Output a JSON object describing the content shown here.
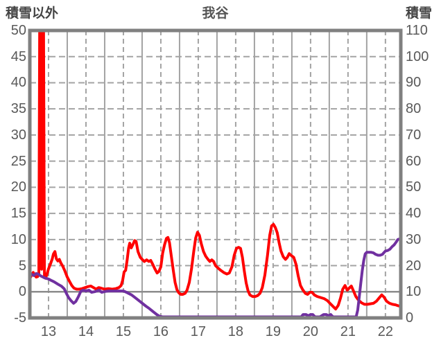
{
  "header": {
    "left_axis_title": "積雪以外",
    "chart_title": "我谷",
    "right_axis_title": "積雪"
  },
  "chart_data": {
    "type": "line",
    "title": "我谷",
    "grid": {
      "on": true,
      "color": "#A3A3A3",
      "zero_line_color": "#8C8C8C",
      "border_color": "#808080"
    },
    "left_axis": {
      "label": "積雪以外",
      "min": -5,
      "max": 50,
      "step": 5,
      "tick_labels": [
        "50",
        "45",
        "40",
        "35",
        "30",
        "25",
        "20",
        "15",
        "10",
        "5",
        "0",
        "-5"
      ]
    },
    "right_axis": {
      "label": "積雪",
      "min": 0,
      "max": 110,
      "step": 10,
      "tick_labels": [
        "110",
        "100",
        "90",
        "80",
        "70",
        "60",
        "50",
        "40",
        "30",
        "20",
        "10",
        "0"
      ]
    },
    "x_axis": {
      "min": 13.0,
      "max": 22.91,
      "tick_labels": [
        "13",
        "14",
        "15",
        "16",
        "17",
        "18",
        "19",
        "20",
        "21",
        "22"
      ],
      "label_positions": [
        13.5,
        14.5,
        15.5,
        16.5,
        17.5,
        18.5,
        19.5,
        20.5,
        21.5,
        22.5
      ],
      "solid_gridlines": [
        14,
        15,
        16,
        17,
        18,
        19,
        20,
        21,
        22
      ],
      "dashed_gridlines": [
        13.5,
        14.5,
        15.5,
        16.5,
        17.5,
        18.5,
        19.5,
        20.5,
        21.5,
        22.5
      ]
    },
    "series": [
      {
        "name": "積雪以外",
        "axis": "left",
        "color": "#FF0000",
        "width": 4,
        "points": [
          [
            13.0,
            2.5
          ],
          [
            13.05,
            3.2
          ],
          [
            13.09,
            3.7
          ],
          [
            13.13,
            3.2
          ],
          [
            13.17,
            2.8
          ],
          [
            13.21,
            2.9
          ],
          [
            13.24,
            3.4
          ],
          [
            13.265,
            55
          ],
          [
            13.3,
            55
          ],
          [
            13.315,
            4.3
          ],
          [
            13.33,
            55
          ],
          [
            13.365,
            55
          ],
          [
            13.39,
            3.0
          ],
          [
            13.42,
            2.6
          ],
          [
            13.46,
            3.4
          ],
          [
            13.5,
            4.4
          ],
          [
            13.55,
            5.3
          ],
          [
            13.6,
            6.3
          ],
          [
            13.63,
            7.2
          ],
          [
            13.67,
            7.7
          ],
          [
            13.71,
            6.3
          ],
          [
            13.75,
            5.9
          ],
          [
            13.79,
            6.2
          ],
          [
            13.83,
            5.5
          ],
          [
            13.88,
            4.9
          ],
          [
            13.93,
            4.1
          ],
          [
            14.0,
            2.8
          ],
          [
            14.06,
            2.0
          ],
          [
            14.12,
            1.2
          ],
          [
            14.18,
            0.7
          ],
          [
            14.25,
            0.5
          ],
          [
            14.32,
            0.5
          ],
          [
            14.4,
            0.6
          ],
          [
            14.48,
            0.8
          ],
          [
            14.56,
            1.0
          ],
          [
            14.63,
            1.1
          ],
          [
            14.7,
            0.8
          ],
          [
            14.77,
            0.5
          ],
          [
            14.84,
            0.8
          ],
          [
            14.9,
            0.7
          ],
          [
            15.0,
            0.5
          ],
          [
            15.1,
            0.6
          ],
          [
            15.2,
            0.5
          ],
          [
            15.3,
            0.6
          ],
          [
            15.38,
            0.8
          ],
          [
            15.44,
            1.2
          ],
          [
            15.48,
            2.2
          ],
          [
            15.52,
            3.8
          ],
          [
            15.56,
            4.1
          ],
          [
            15.6,
            6.1
          ],
          [
            15.64,
            8.4
          ],
          [
            15.67,
            9.3
          ],
          [
            15.71,
            8.4
          ],
          [
            15.75,
            9.0
          ],
          [
            15.8,
            9.8
          ],
          [
            15.84,
            9.6
          ],
          [
            15.89,
            7.7
          ],
          [
            15.95,
            6.6
          ],
          [
            16.0,
            6.2
          ],
          [
            16.06,
            5.8
          ],
          [
            16.12,
            6.1
          ],
          [
            16.18,
            5.8
          ],
          [
            16.23,
            6.0
          ],
          [
            16.28,
            5.3
          ],
          [
            16.34,
            4.4
          ],
          [
            16.4,
            3.6
          ],
          [
            16.45,
            3.9
          ],
          [
            16.5,
            4.8
          ],
          [
            16.55,
            7.4
          ],
          [
            16.6,
            9.0
          ],
          [
            16.65,
            10.2
          ],
          [
            16.69,
            10.4
          ],
          [
            16.73,
            9.4
          ],
          [
            16.78,
            6.8
          ],
          [
            16.83,
            4.2
          ],
          [
            16.88,
            1.8
          ],
          [
            16.93,
            0.4
          ],
          [
            16.98,
            -0.2
          ],
          [
            17.03,
            -0.5
          ],
          [
            17.09,
            -0.5
          ],
          [
            17.15,
            -0.3
          ],
          [
            17.2,
            0.3
          ],
          [
            17.26,
            1.8
          ],
          [
            17.32,
            4.4
          ],
          [
            17.38,
            7.8
          ],
          [
            17.43,
            10.3
          ],
          [
            17.48,
            11.4
          ],
          [
            17.53,
            10.8
          ],
          [
            17.58,
            9.2
          ],
          [
            17.64,
            7.7
          ],
          [
            17.7,
            6.8
          ],
          [
            17.76,
            6.2
          ],
          [
            17.81,
            5.8
          ],
          [
            17.86,
            6.1
          ],
          [
            17.91,
            5.8
          ],
          [
            17.96,
            5.0
          ],
          [
            18.02,
            4.6
          ],
          [
            18.1,
            4.1
          ],
          [
            18.18,
            3.7
          ],
          [
            18.26,
            3.4
          ],
          [
            18.33,
            3.6
          ],
          [
            18.4,
            4.8
          ],
          [
            18.46,
            7.0
          ],
          [
            18.52,
            8.3
          ],
          [
            18.58,
            8.5
          ],
          [
            18.63,
            8.3
          ],
          [
            18.68,
            6.6
          ],
          [
            18.73,
            4.0
          ],
          [
            18.78,
            1.7
          ],
          [
            18.83,
            0.2
          ],
          [
            18.88,
            -0.6
          ],
          [
            18.95,
            -0.9
          ],
          [
            19.02,
            -0.9
          ],
          [
            19.09,
            -0.7
          ],
          [
            19.15,
            -0.3
          ],
          [
            19.21,
            0.8
          ],
          [
            19.28,
            3.2
          ],
          [
            19.35,
            7.0
          ],
          [
            19.41,
            10.8
          ],
          [
            19.46,
            12.6
          ],
          [
            19.51,
            12.9
          ],
          [
            19.56,
            12.3
          ],
          [
            19.61,
            11.3
          ],
          [
            19.66,
            9.4
          ],
          [
            19.71,
            7.8
          ],
          [
            19.77,
            6.7
          ],
          [
            19.83,
            6.2
          ],
          [
            19.88,
            6.6
          ],
          [
            19.93,
            7.3
          ],
          [
            19.99,
            6.9
          ],
          [
            20.05,
            6.6
          ],
          [
            20.11,
            5.3
          ],
          [
            20.17,
            3.0
          ],
          [
            20.23,
            1.2
          ],
          [
            20.29,
            0.4
          ],
          [
            20.36,
            -0.3
          ],
          [
            20.42,
            -0.5
          ],
          [
            20.48,
            -0.1
          ],
          [
            20.54,
            -0.1
          ],
          [
            20.6,
            -0.6
          ],
          [
            20.68,
            -0.9
          ],
          [
            20.77,
            -1.1
          ],
          [
            20.86,
            -1.3
          ],
          [
            20.95,
            -1.7
          ],
          [
            21.03,
            -2.3
          ],
          [
            21.1,
            -2.8
          ],
          [
            21.17,
            -3.3
          ],
          [
            21.24,
            -2.6
          ],
          [
            21.3,
            -1.2
          ],
          [
            21.36,
            0.5
          ],
          [
            21.42,
            1.2
          ],
          [
            21.48,
            0.3
          ],
          [
            21.53,
            0.7
          ],
          [
            21.59,
            1.1
          ],
          [
            21.65,
            0.1
          ],
          [
            21.71,
            -0.9
          ],
          [
            21.78,
            -1.6
          ],
          [
            21.86,
            -2.1
          ],
          [
            21.94,
            -2.4
          ],
          [
            22.02,
            -2.4
          ],
          [
            22.1,
            -2.3
          ],
          [
            22.18,
            -2.2
          ],
          [
            22.26,
            -1.8
          ],
          [
            22.33,
            -1.2
          ],
          [
            22.4,
            -0.6
          ],
          [
            22.46,
            -1.0
          ],
          [
            22.53,
            -1.8
          ],
          [
            22.61,
            -2.2
          ],
          [
            22.69,
            -2.4
          ],
          [
            22.77,
            -2.5
          ],
          [
            22.85,
            -2.7
          ],
          [
            22.91,
            -2.8
          ]
        ]
      },
      {
        "name": "積雪",
        "axis": "right",
        "color": "#7030A0",
        "width": 4,
        "points": [
          [
            13.0,
            17.2
          ],
          [
            13.06,
            16.6
          ],
          [
            13.11,
            16.2
          ],
          [
            13.17,
            17.0
          ],
          [
            13.22,
            16.8
          ],
          [
            13.3,
            16.0
          ],
          [
            13.4,
            15.3
          ],
          [
            13.5,
            14.9
          ],
          [
            13.58,
            14.3
          ],
          [
            13.65,
            13.8
          ],
          [
            13.75,
            12.9
          ],
          [
            13.85,
            12.1
          ],
          [
            13.92,
            11.1
          ],
          [
            13.98,
            9.3
          ],
          [
            14.04,
            7.7
          ],
          [
            14.1,
            6.6
          ],
          [
            14.17,
            5.6
          ],
          [
            14.23,
            6.3
          ],
          [
            14.3,
            8.2
          ],
          [
            14.36,
            10.1
          ],
          [
            14.42,
            10.6
          ],
          [
            14.5,
            10.3
          ],
          [
            14.58,
            10.6
          ],
          [
            14.65,
            9.8
          ],
          [
            14.75,
            10.1
          ],
          [
            14.85,
            10.6
          ],
          [
            14.92,
            9.8
          ],
          [
            15.0,
            10.1
          ],
          [
            15.1,
            10.3
          ],
          [
            15.2,
            10.3
          ],
          [
            15.3,
            10.3
          ],
          [
            15.4,
            10.3
          ],
          [
            15.5,
            10.3
          ],
          [
            15.58,
            9.8
          ],
          [
            15.65,
            9.3
          ],
          [
            15.72,
            8.8
          ],
          [
            15.8,
            7.9
          ],
          [
            15.88,
            7.0
          ],
          [
            15.95,
            6.2
          ],
          [
            16.03,
            5.3
          ],
          [
            16.1,
            4.5
          ],
          [
            16.18,
            3.7
          ],
          [
            16.25,
            2.9
          ],
          [
            16.32,
            2.1
          ],
          [
            16.4,
            1.2
          ],
          [
            16.47,
            0.6
          ],
          [
            16.55,
            0.4
          ],
          [
            17.0,
            0.4
          ],
          [
            17.5,
            0.4
          ],
          [
            18.0,
            0.4
          ],
          [
            18.5,
            0.4
          ],
          [
            19.0,
            0.4
          ],
          [
            19.5,
            0.4
          ],
          [
            20.0,
            0.4
          ],
          [
            20.25,
            0.4
          ],
          [
            20.3,
            1.3
          ],
          [
            20.38,
            1.3
          ],
          [
            20.44,
            0.8
          ],
          [
            20.5,
            1.3
          ],
          [
            20.56,
            1.3
          ],
          [
            20.62,
            0.4
          ],
          [
            20.75,
            0.4
          ],
          [
            20.85,
            1.3
          ],
          [
            20.92,
            1.3
          ],
          [
            20.98,
            0.8
          ],
          [
            21.04,
            1.3
          ],
          [
            21.1,
            0.4
          ],
          [
            21.3,
            0.4
          ],
          [
            21.5,
            0.4
          ],
          [
            21.68,
            0.4
          ],
          [
            21.72,
            0.6
          ],
          [
            21.76,
            3.0
          ],
          [
            21.8,
            8.0
          ],
          [
            21.84,
            13.0
          ],
          [
            21.88,
            18.0
          ],
          [
            21.92,
            22.0
          ],
          [
            21.96,
            24.5
          ],
          [
            22.0,
            25.1
          ],
          [
            22.06,
            25.1
          ],
          [
            22.12,
            25.1
          ],
          [
            22.18,
            24.9
          ],
          [
            22.24,
            24.3
          ],
          [
            22.3,
            24.0
          ],
          [
            22.36,
            24.0
          ],
          [
            22.42,
            24.3
          ],
          [
            22.46,
            25.0
          ],
          [
            22.5,
            25.6
          ],
          [
            22.56,
            25.8
          ],
          [
            22.62,
            26.3
          ],
          [
            22.68,
            27.3
          ],
          [
            22.73,
            27.9
          ],
          [
            22.78,
            28.9
          ],
          [
            22.83,
            30.0
          ],
          [
            22.87,
            30.2
          ],
          [
            22.91,
            29.6
          ]
        ]
      }
    ]
  }
}
